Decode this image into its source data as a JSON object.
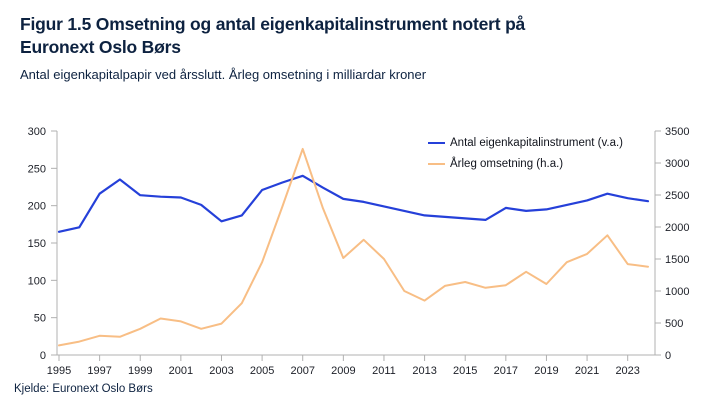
{
  "header": {
    "title": "Figur 1.5 Omsetning og antal eigenkapitalinstrument notert på Euronext Oslo Børs",
    "subtitle": "Antal eigenkapitalpapir ved årsslutt. Årleg omsetning i milliardar kroner"
  },
  "source": "Kjelde: Euronext Oslo Børs",
  "colors": {
    "title_text": "#0d2240",
    "axis_line": "#b0b0b0",
    "tick_text": "#1c1f27",
    "series1": "#2540d9",
    "series2": "#f8be85"
  },
  "chart_data": {
    "type": "line",
    "title": "Figur 1.5 Omsetning og antal eigenkapitalinstrument notert på Euronext Oslo Børs",
    "subtitle": "Antal eigenkapitalpapir ved årsslutt. Årleg omsetning i milliardar kroner",
    "x": [
      1995,
      1996,
      1997,
      1998,
      1999,
      2000,
      2001,
      2002,
      2003,
      2004,
      2005,
      2006,
      2007,
      2008,
      2009,
      2010,
      2011,
      2012,
      2013,
      2014,
      2015,
      2016,
      2017,
      2018,
      2019,
      2020,
      2021,
      2022,
      2023,
      2024
    ],
    "series": [
      {
        "name": "Antal eigenkapitalinstrument (v.a.)",
        "axis": "left",
        "color": "#2540d9",
        "values": [
          165,
          171,
          216,
          235,
          214,
          212,
          211,
          201,
          179,
          187,
          221,
          231,
          240,
          224,
          209,
          205,
          199,
          193,
          187,
          185,
          183,
          181,
          197,
          193,
          195,
          201,
          207,
          216,
          210,
          206
        ]
      },
      {
        "name": "Årleg omsetning (h.a.)",
        "axis": "right",
        "color": "#f8be85",
        "values": [
          150,
          210,
          300,
          285,
          410,
          570,
          525,
          410,
          490,
          810,
          1450,
          2320,
          3220,
          2290,
          1515,
          1800,
          1500,
          1000,
          850,
          1080,
          1140,
          1050,
          1090,
          1300,
          1110,
          1450,
          1580,
          1870,
          1420,
          1380
        ]
      }
    ],
    "left_axis": {
      "min": 0,
      "max": 300,
      "ticks": [
        0,
        50,
        100,
        150,
        200,
        250,
        300
      ]
    },
    "right_axis": {
      "min": 0,
      "max": 3500,
      "ticks": [
        0,
        500,
        1000,
        1500,
        2000,
        2500,
        3000,
        3500
      ]
    },
    "x_axis": {
      "tick_years": [
        1995,
        1997,
        1999,
        2001,
        2003,
        2005,
        2007,
        2009,
        2011,
        2013,
        2015,
        2017,
        2019,
        2021,
        2023
      ]
    },
    "legend_position": "top-right-inside",
    "grid": false
  }
}
